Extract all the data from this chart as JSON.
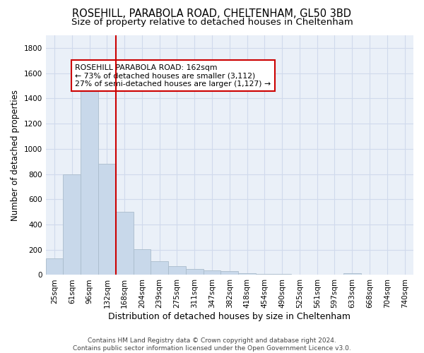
{
  "title": "ROSEHILL, PARABOLA ROAD, CHELTENHAM, GL50 3BD",
  "subtitle": "Size of property relative to detached houses in Cheltenham",
  "xlabel": "Distribution of detached houses by size in Cheltenham",
  "ylabel": "Number of detached properties",
  "categories": [
    "25sqm",
    "61sqm",
    "96sqm",
    "132sqm",
    "168sqm",
    "204sqm",
    "239sqm",
    "275sqm",
    "311sqm",
    "347sqm",
    "382sqm",
    "418sqm",
    "454sqm",
    "490sqm",
    "525sqm",
    "561sqm",
    "597sqm",
    "633sqm",
    "668sqm",
    "704sqm",
    "740sqm"
  ],
  "values": [
    130,
    800,
    1490,
    880,
    500,
    205,
    110,
    70,
    45,
    35,
    28,
    15,
    10,
    8,
    5,
    4,
    3,
    15,
    0,
    0,
    0
  ],
  "bar_color": "#c8d8ea",
  "bar_edge_color": "#aabccc",
  "vline_color": "#cc0000",
  "annotation_line1": "ROSEHILL PARABOLA ROAD: 162sqm",
  "annotation_line2": "← 73% of detached houses are smaller (3,112)",
  "annotation_line3": "27% of semi-detached houses are larger (1,127) →",
  "annotation_box_color": "#cc0000",
  "ylim": [
    0,
    1900
  ],
  "yticks": [
    0,
    200,
    400,
    600,
    800,
    1000,
    1200,
    1400,
    1600,
    1800
  ],
  "grid_color": "#d0daec",
  "bg_color": "#eaf0f8",
  "footer_text": "Contains HM Land Registry data © Crown copyright and database right 2024.\nContains public sector information licensed under the Open Government Licence v3.0.",
  "title_fontsize": 10.5,
  "subtitle_fontsize": 9.5,
  "xlabel_fontsize": 9,
  "ylabel_fontsize": 8.5,
  "tick_fontsize": 7.5,
  "annotation_fontsize": 7.8,
  "footer_fontsize": 6.5
}
